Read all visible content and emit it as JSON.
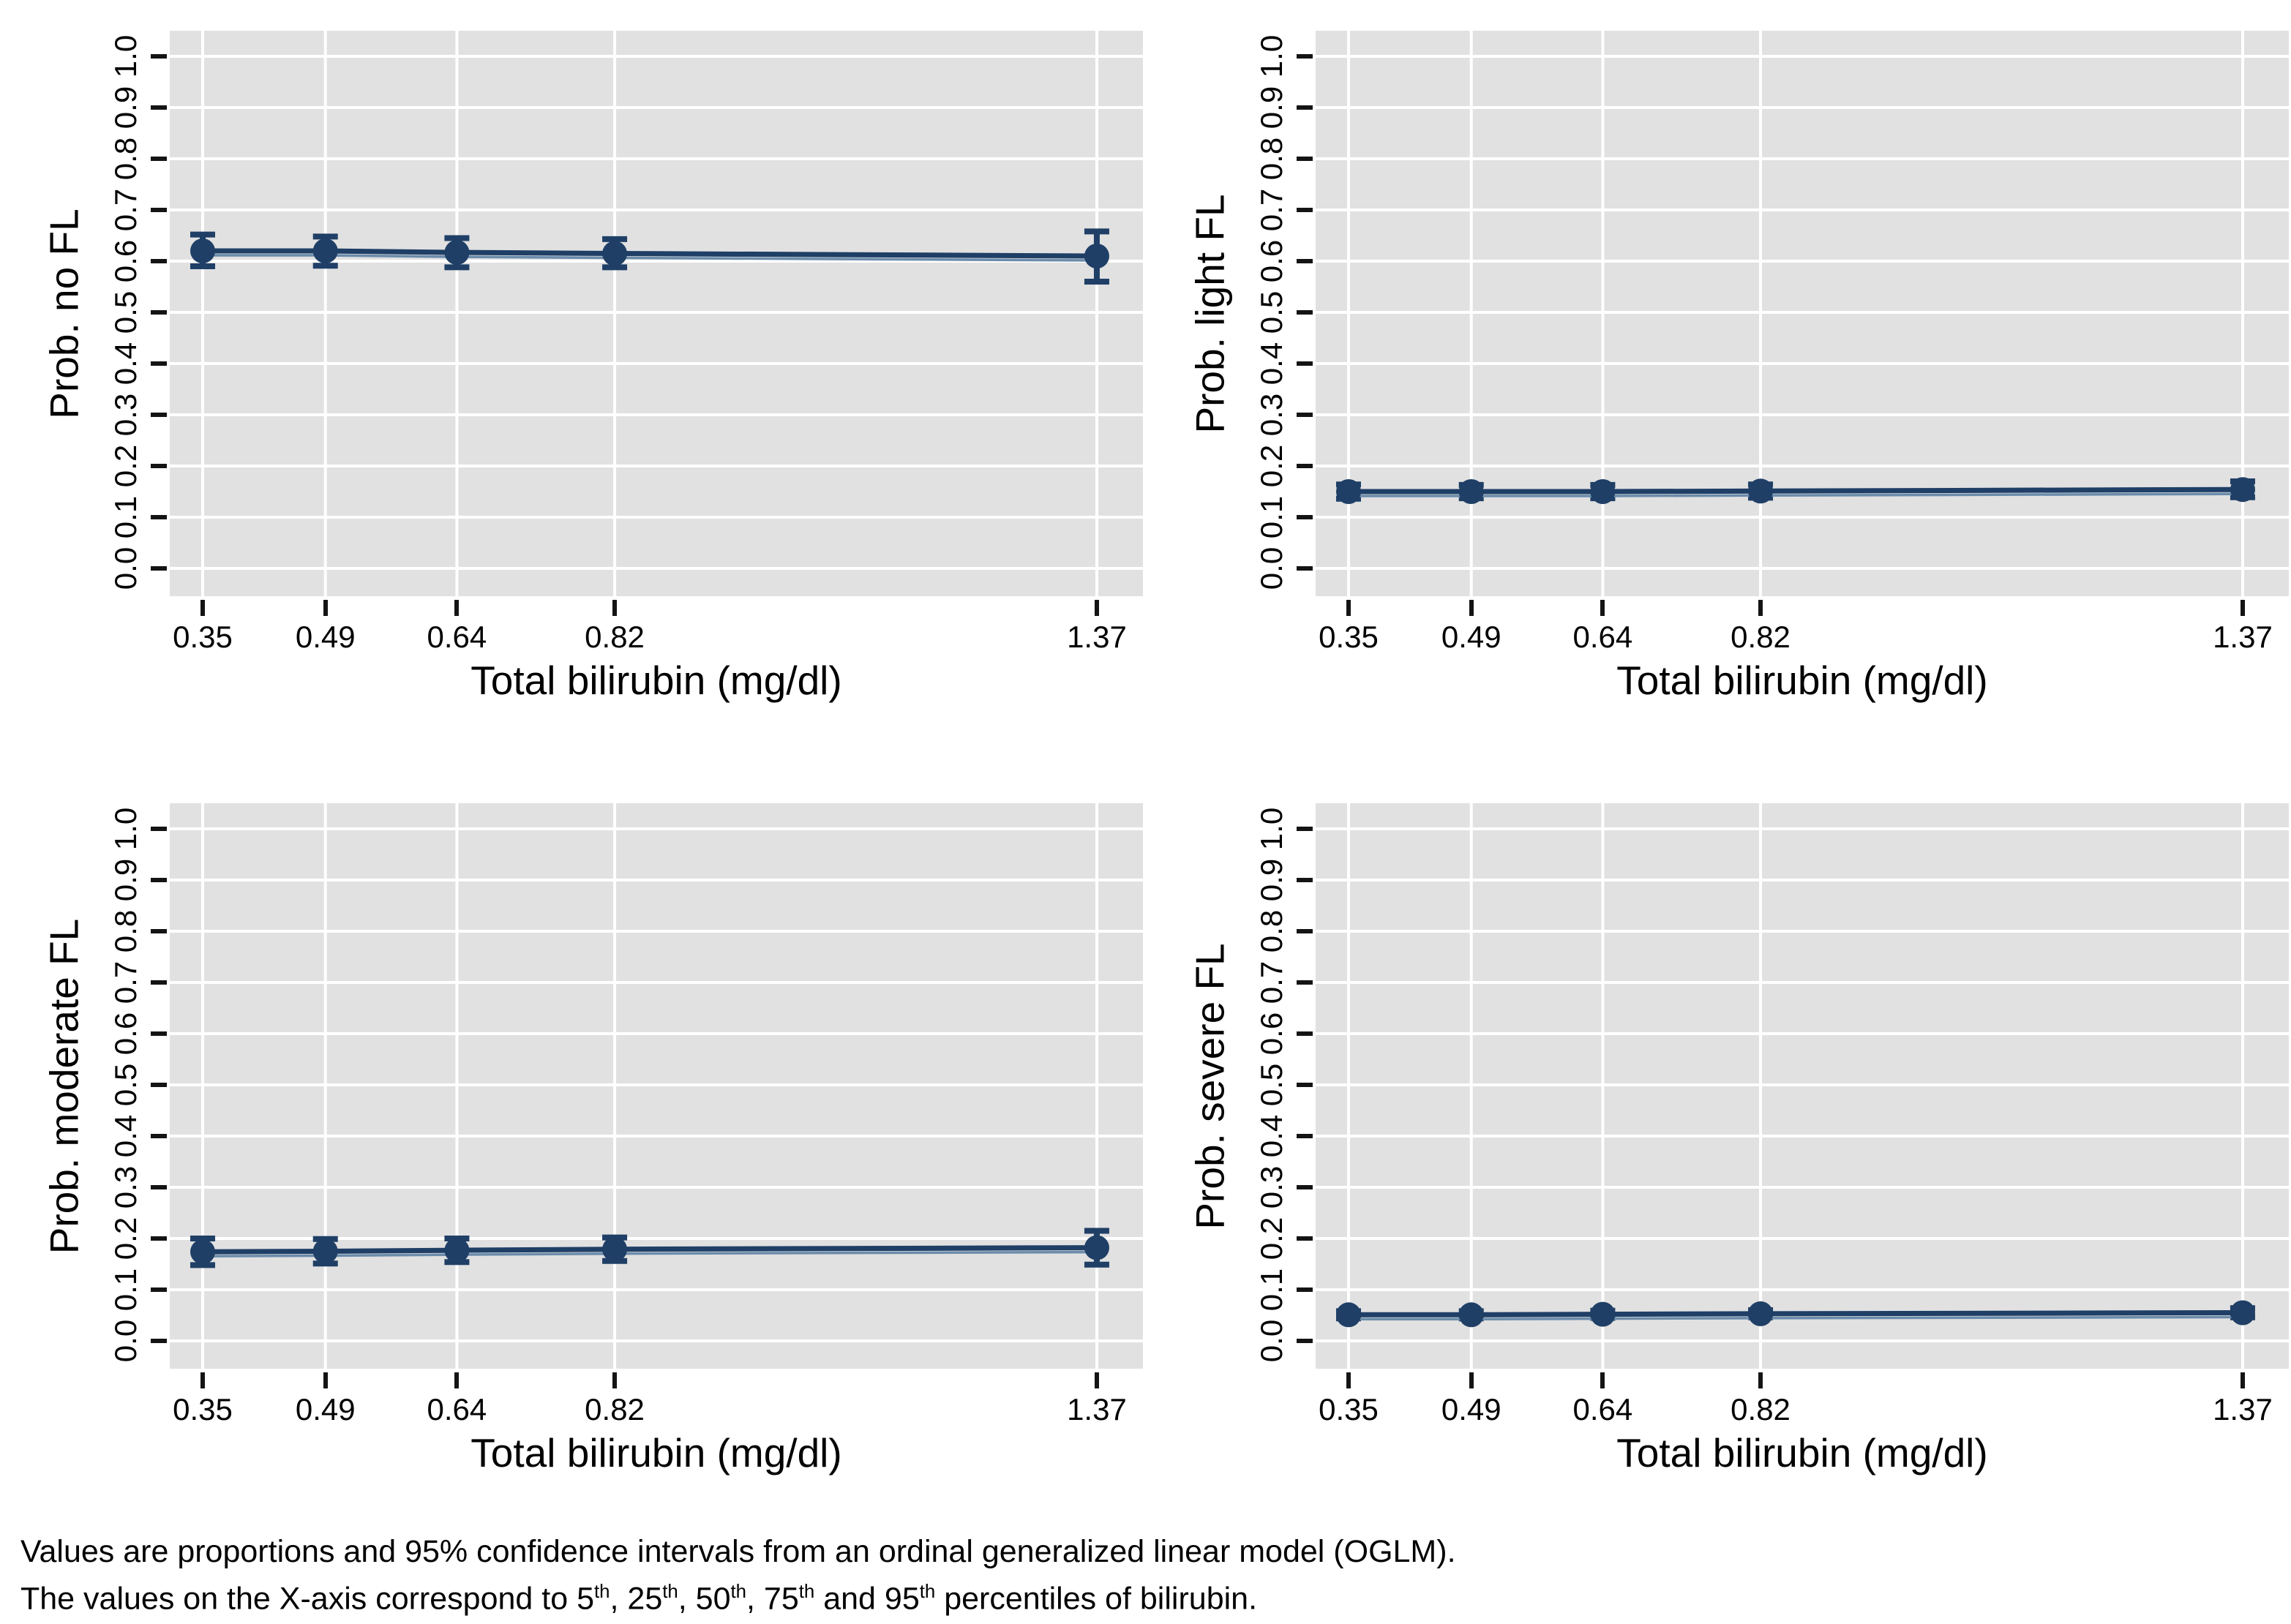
{
  "style": {
    "accent": "#1f3f66",
    "accent_light": "#6b8cab",
    "plot_background": "#e1e1e1",
    "grid_color": "#ffffff",
    "tick_color": "#141414",
    "text_color": "#000000",
    "page_background": "#ffffff"
  },
  "chart_data": [
    {
      "type": "line",
      "panel": "top-left",
      "ylabel": "Prob. no FL",
      "xlabel": "Total bilirubin (mg/dl)",
      "x": [
        0.35,
        0.49,
        0.64,
        0.82,
        1.37
      ],
      "x_tick_labels": [
        "0.35",
        "0.49",
        "0.64",
        "0.82",
        "1.37"
      ],
      "y": [
        0.62,
        0.62,
        0.617,
        0.615,
        0.61
      ],
      "ci_low": [
        0.59,
        0.591,
        0.588,
        0.588,
        0.56
      ],
      "ci_high": [
        0.652,
        0.648,
        0.645,
        0.643,
        0.658
      ],
      "ylim": [
        0,
        1
      ],
      "y_tick_labels": [
        "0.0",
        "0.1",
        "0.2",
        "0.3",
        "0.4",
        "0.5",
        "0.6",
        "0.7",
        "0.8",
        "0.9",
        "1.0"
      ],
      "grid": true,
      "legend": "none"
    },
    {
      "type": "line",
      "panel": "top-right",
      "ylabel": "Prob. light FL",
      "xlabel": "Total bilirubin (mg/dl)",
      "x": [
        0.35,
        0.49,
        0.64,
        0.82,
        1.37
      ],
      "x_tick_labels": [
        "0.35",
        "0.49",
        "0.64",
        "0.82",
        "1.37"
      ],
      "y": [
        0.15,
        0.15,
        0.15,
        0.151,
        0.154
      ],
      "ci_low": [
        0.136,
        0.137,
        0.137,
        0.138,
        0.139
      ],
      "ci_high": [
        0.164,
        0.163,
        0.163,
        0.164,
        0.17
      ],
      "ylim": [
        0,
        1
      ],
      "y_tick_labels": [
        "0.0",
        "0.1",
        "0.2",
        "0.3",
        "0.4",
        "0.5",
        "0.6",
        "0.7",
        "0.8",
        "0.9",
        "1.0"
      ],
      "grid": true,
      "legend": "none"
    },
    {
      "type": "line",
      "panel": "bottom-left",
      "ylabel": "Prob. moderate FL",
      "xlabel": "Total bilirubin (mg/dl)",
      "x": [
        0.35,
        0.49,
        0.64,
        0.82,
        1.37
      ],
      "x_tick_labels": [
        "0.35",
        "0.49",
        "0.64",
        "0.82",
        "1.37"
      ],
      "y": [
        0.174,
        0.175,
        0.177,
        0.179,
        0.182
      ],
      "ci_low": [
        0.148,
        0.151,
        0.154,
        0.156,
        0.149
      ],
      "ci_high": [
        0.2,
        0.199,
        0.2,
        0.202,
        0.215
      ],
      "ylim": [
        0,
        1
      ],
      "y_tick_labels": [
        "0.0",
        "0.1",
        "0.2",
        "0.3",
        "0.4",
        "0.5",
        "0.6",
        "0.7",
        "0.8",
        "0.9",
        "1.0"
      ],
      "grid": true,
      "legend": "none"
    },
    {
      "type": "line",
      "panel": "bottom-right",
      "ylabel": "Prob. severe FL",
      "xlabel": "Total bilirubin (mg/dl)",
      "x": [
        0.35,
        0.49,
        0.64,
        0.82,
        1.37
      ],
      "x_tick_labels": [
        "0.35",
        "0.49",
        "0.64",
        "0.82",
        "1.37"
      ],
      "y": [
        0.051,
        0.051,
        0.052,
        0.053,
        0.055
      ],
      "ci_low": [
        0.044,
        0.044,
        0.045,
        0.046,
        0.046
      ],
      "ci_high": [
        0.058,
        0.058,
        0.059,
        0.06,
        0.064
      ],
      "ylim": [
        0,
        1
      ],
      "y_tick_labels": [
        "0.0",
        "0.1",
        "0.2",
        "0.3",
        "0.4",
        "0.5",
        "0.6",
        "0.7",
        "0.8",
        "0.9",
        "1.0"
      ],
      "grid": true,
      "legend": "none"
    }
  ],
  "footer": {
    "line1": "Values are proportions and 95% confidence intervals from an ordinal generalized linear model (OGLM).",
    "line2_plain": "The values on the X-axis correspond to 5th, 25th, 50th, 75th and 95th percentiles of bilirubin.",
    "line2_parts": [
      {
        "t": "The values on the X-axis correspond to 5"
      },
      {
        "t": "th",
        "sup": true
      },
      {
        "t": ", 25"
      },
      {
        "t": "th",
        "sup": true
      },
      {
        "t": ", 50"
      },
      {
        "t": "th",
        "sup": true
      },
      {
        "t": ", 75"
      },
      {
        "t": "th",
        "sup": true
      },
      {
        "t": " and 95"
      },
      {
        "t": "th",
        "sup": true
      },
      {
        "t": " percentiles of bilirubin."
      }
    ]
  }
}
